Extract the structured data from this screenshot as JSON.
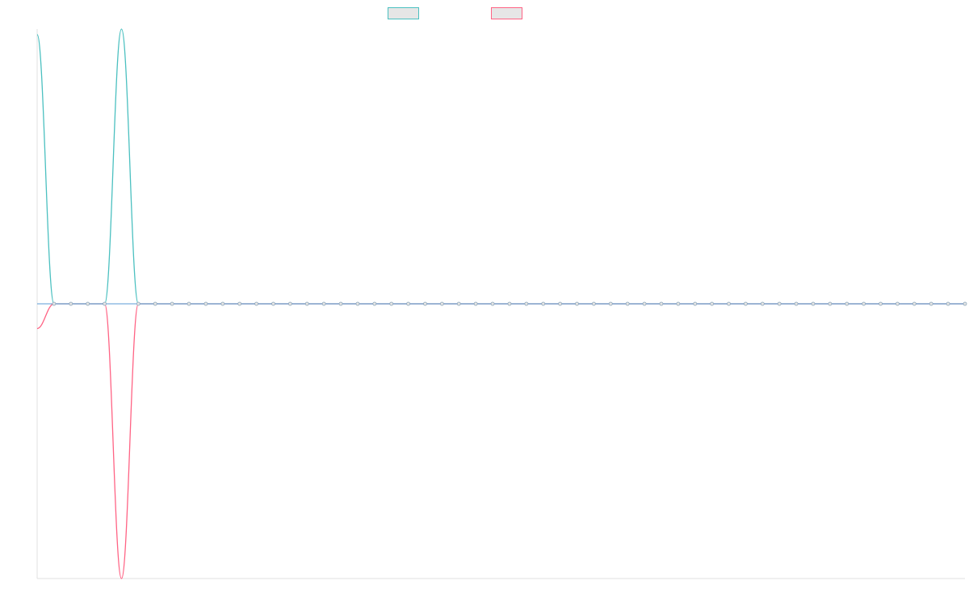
{
  "chart_data": {
    "type": "line",
    "title": "",
    "xlabel": "",
    "ylabel": "",
    "grid": false,
    "legend_position": "top-center",
    "x": [
      0,
      1,
      2,
      3,
      4,
      5,
      6,
      7,
      8,
      9,
      10,
      11,
      12,
      13,
      14,
      15,
      16,
      17,
      18,
      19,
      20,
      21,
      22,
      23,
      24,
      25,
      26,
      27,
      28,
      29,
      30,
      31,
      32,
      33,
      34,
      35,
      36,
      37,
      38,
      39,
      40,
      41,
      42,
      43,
      44,
      45,
      46,
      47,
      48,
      49,
      50,
      51,
      52,
      53,
      54,
      55
    ],
    "ylim": [
      -1,
      1
    ],
    "series": [
      {
        "name": "",
        "color": "#4bc0c0",
        "fill": "#e6e6e6",
        "values": [
          0.98,
          0,
          0,
          0,
          0,
          1,
          0,
          0,
          0,
          0,
          0,
          0,
          0,
          0,
          0,
          0,
          0,
          0,
          0,
          0,
          0,
          0,
          0,
          0,
          0,
          0,
          0,
          0,
          0,
          0,
          0,
          0,
          0,
          0,
          0,
          0,
          0,
          0,
          0,
          0,
          0,
          0,
          0,
          0,
          0,
          0,
          0,
          0,
          0,
          0,
          0,
          0,
          0,
          0,
          0,
          0
        ]
      },
      {
        "name": "",
        "color": "#ff6384",
        "fill": "#e6e6e6",
        "values": [
          -0.09,
          0,
          0,
          0,
          0,
          -1,
          0,
          0,
          0,
          0,
          0,
          0,
          0,
          0,
          0,
          0,
          0,
          0,
          0,
          0,
          0,
          0,
          0,
          0,
          0,
          0,
          0,
          0,
          0,
          0,
          0,
          0,
          0,
          0,
          0,
          0,
          0,
          0,
          0,
          0,
          0,
          0,
          0,
          0,
          0,
          0,
          0,
          0,
          0,
          0,
          0,
          0,
          0,
          0,
          0,
          0
        ]
      }
    ],
    "axis_color": "#e0e0e0",
    "zero_line_color": "#5b9bd5"
  }
}
